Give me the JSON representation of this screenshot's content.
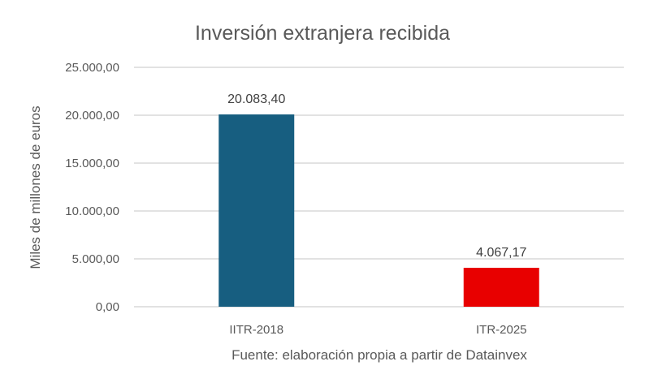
{
  "chart_data": {
    "type": "bar",
    "title": "Inversión extranjera recibida",
    "ylabel": "Miles de millones de euros",
    "xlabel": "",
    "categories": [
      "IITR-2018",
      "ITR-2025"
    ],
    "values": [
      20083.4,
      4067.17
    ],
    "data_labels": [
      "20.083,40",
      "4.067,17"
    ],
    "bar_colors": [
      "#175E80",
      "#E80000"
    ],
    "ylim": [
      0,
      25000
    ],
    "yticks": [
      0,
      5000,
      10000,
      15000,
      20000,
      25000
    ],
    "ytick_labels": [
      "0,00",
      "5.000,00",
      "10.000,00",
      "15.000,00",
      "20.000,00",
      "25.000,00"
    ],
    "grid": true,
    "legend": "none",
    "source": "Fuente: elaboración propia a partir de Datainvex"
  }
}
